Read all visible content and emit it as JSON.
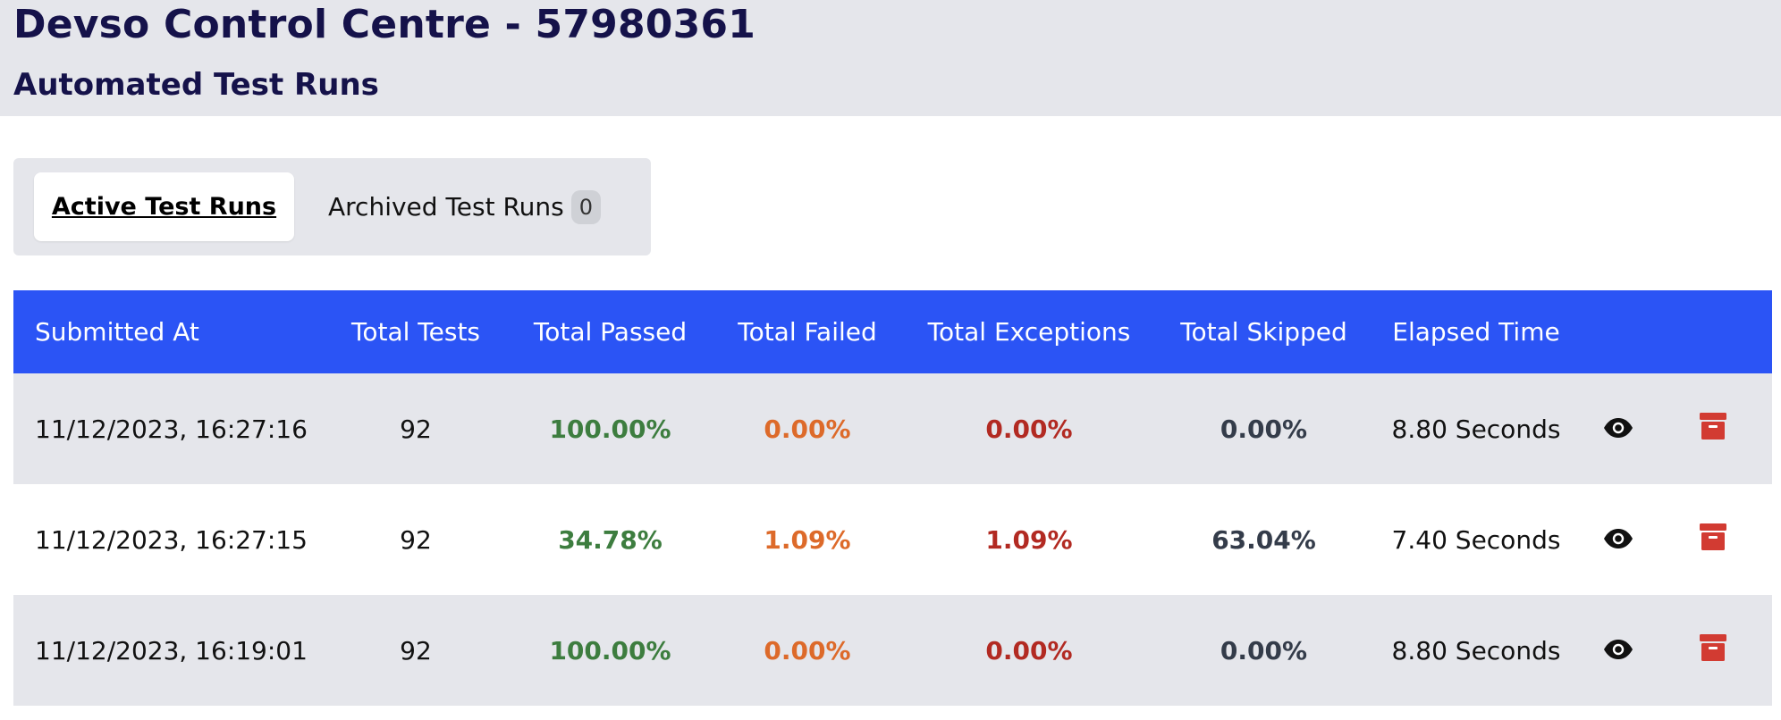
{
  "header": {
    "app_title": "Devso Control Centre - 57980361",
    "page_subtitle": "Automated Test Runs"
  },
  "tabs": [
    {
      "label": "Active Test Runs",
      "active": true
    },
    {
      "label": "Archived Test Runs",
      "count": "0",
      "active": false
    }
  ],
  "table": {
    "columns": [
      "Submitted At",
      "Total Tests",
      "Total Passed",
      "Total Failed",
      "Total Exceptions",
      "Total Skipped",
      "Elapsed Time"
    ],
    "rows": [
      {
        "submitted_at": "11/12/2023, 16:27:16",
        "total_tests": "92",
        "passed": "100.00%",
        "failed": "0.00%",
        "exceptions": "0.00%",
        "skipped": "0.00%",
        "elapsed": "8.80 Seconds"
      },
      {
        "submitted_at": "11/12/2023, 16:27:15",
        "total_tests": "92",
        "passed": "34.78%",
        "failed": "1.09%",
        "exceptions": "1.09%",
        "skipped": "63.04%",
        "elapsed": "7.40 Seconds"
      },
      {
        "submitted_at": "11/12/2023, 16:19:01",
        "total_tests": "92",
        "passed": "100.00%",
        "failed": "0.00%",
        "exceptions": "0.00%",
        "skipped": "0.00%",
        "elapsed": "8.80 Seconds"
      }
    ],
    "row_actions": {
      "view_icon": "eye-icon",
      "archive_icon": "archive-icon"
    }
  },
  "colors": {
    "title": "#15124a",
    "header_bg": "#e5e6eb",
    "table_header_bg": "#2b54f5",
    "passed": "#3d7d3f",
    "failed": "#dd6a2a",
    "exceptions": "#b22a22",
    "skipped": "#343c4a",
    "archive": "#d23b32"
  }
}
